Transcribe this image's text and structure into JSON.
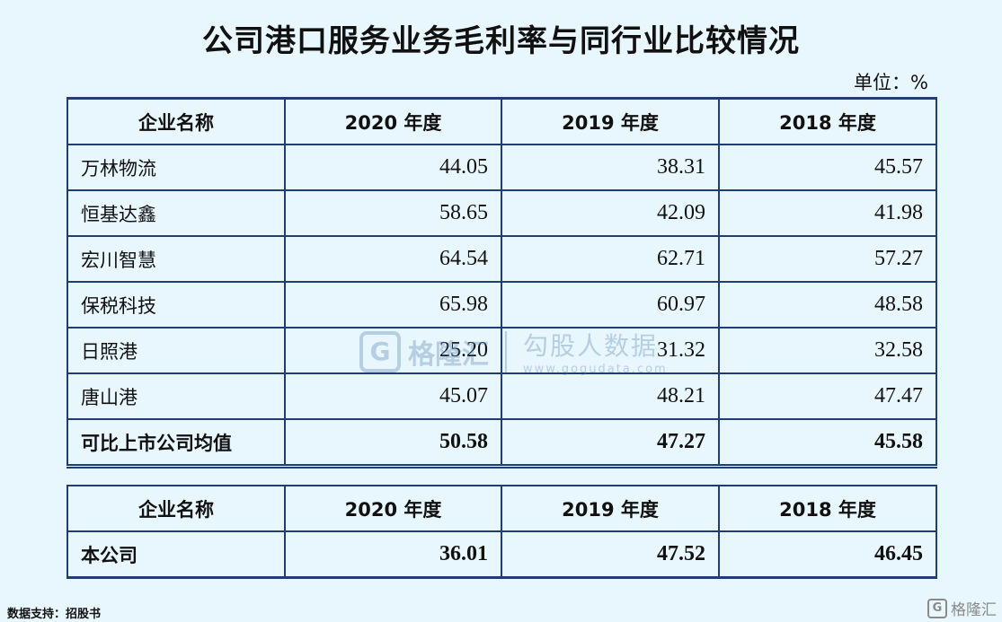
{
  "title": "公司港口服务业务毛利率与同行业比较情况",
  "unit": "单位：%",
  "main_table": {
    "headers": [
      "企业名称",
      "2020 年度",
      "2019 年度",
      "2018 年度"
    ],
    "rows": [
      {
        "name": "万林物流",
        "v2020": "44.05",
        "v2019": "38.31",
        "v2018": "45.57"
      },
      {
        "name": "恒基达鑫",
        "v2020": "58.65",
        "v2019": "42.09",
        "v2018": "41.98"
      },
      {
        "name": "宏川智慧",
        "v2020": "64.54",
        "v2019": "62.71",
        "v2018": "57.27"
      },
      {
        "name": "保税科技",
        "v2020": "65.98",
        "v2019": "60.97",
        "v2018": "48.58"
      },
      {
        "name": "日照港",
        "v2020": "25.20",
        "v2019": "31.32",
        "v2018": "32.58"
      },
      {
        "name": "唐山港",
        "v2020": "45.07",
        "v2019": "48.21",
        "v2018": "47.47"
      }
    ],
    "average": {
      "name": "可比上市公司均值",
      "v2020": "50.58",
      "v2019": "47.27",
      "v2018": "45.58"
    }
  },
  "company_table": {
    "headers": [
      "企业名称",
      "2020 年度",
      "2019 年度",
      "2018 年度"
    ],
    "row": {
      "name": "本公司",
      "v2020": "36.01",
      "v2019": "47.52",
      "v2018": "46.45"
    }
  },
  "watermark": {
    "logo_letter": "G",
    "name": "格隆汇",
    "right_text": "勾股人数据",
    "url": "www.gogudata.com"
  },
  "source": "数据支持：招股书",
  "brand": {
    "logo_letter": "G",
    "name": "格隆汇"
  }
}
